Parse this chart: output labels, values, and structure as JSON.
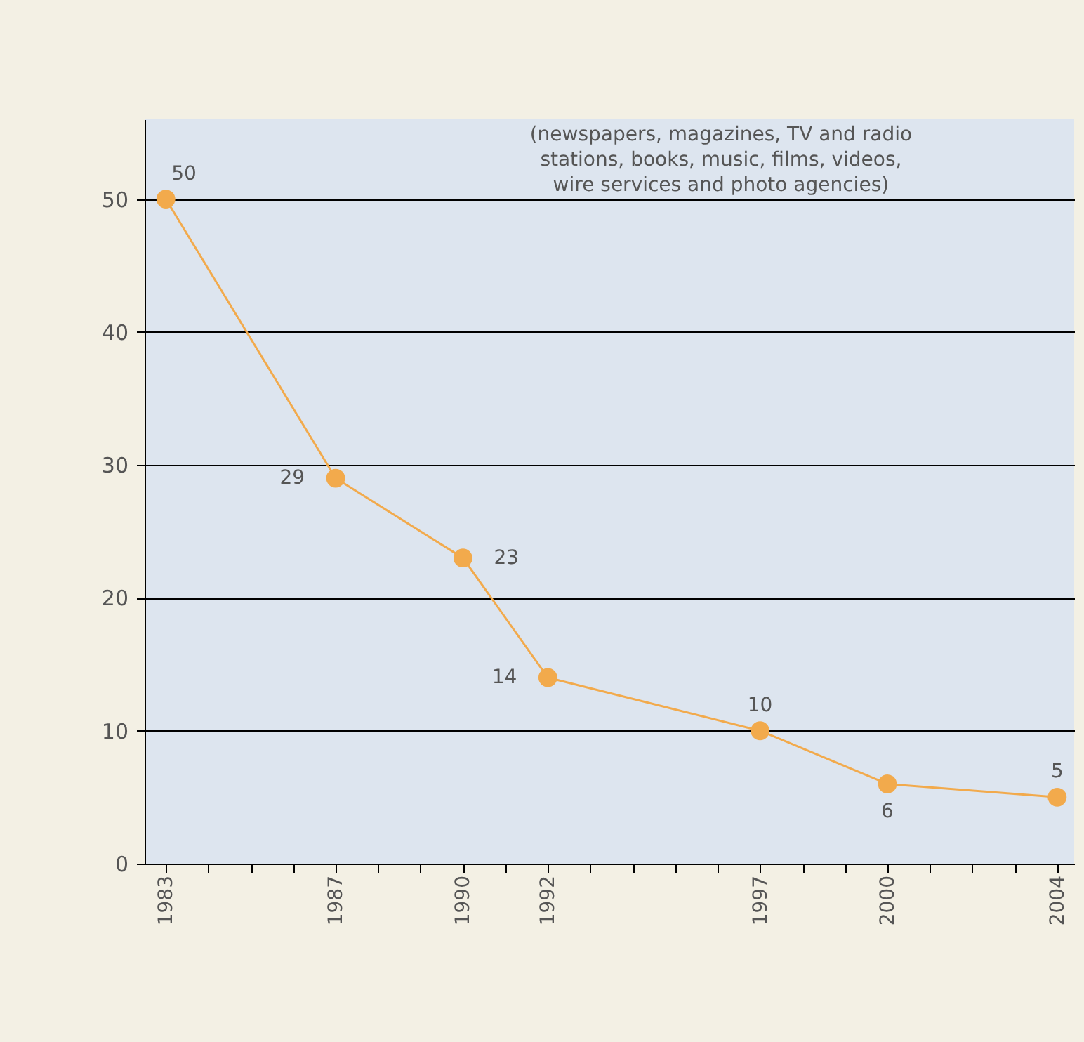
{
  "chart_data": {
    "type": "line",
    "x": [
      1983,
      1987,
      1990,
      1992,
      1997,
      2000,
      2004
    ],
    "series": [
      {
        "color": "#f2aa4c",
        "values": [
          50,
          29,
          23,
          14,
          10,
          6,
          5
        ]
      }
    ],
    "data_labels": true,
    "marker": "circle",
    "line_style": "solid",
    "grid": "y",
    "xlim": [
      1982.5,
      2004.4
    ],
    "xticks": [
      {
        "value": 1983,
        "label": "1983"
      },
      {
        "value": 1984,
        "label": null
      },
      {
        "value": 1985,
        "label": null
      },
      {
        "value": 1986,
        "label": null
      },
      {
        "value": 1987,
        "label": "1987"
      },
      {
        "value": 1988,
        "label": null
      },
      {
        "value": 1989,
        "label": null
      },
      {
        "value": 1990,
        "label": "1990"
      },
      {
        "value": 1991,
        "label": null
      },
      {
        "value": 1992,
        "label": "1992"
      },
      {
        "value": 1993,
        "label": null
      },
      {
        "value": 1994,
        "label": null
      },
      {
        "value": 1995,
        "label": null
      },
      {
        "value": 1996,
        "label": null
      },
      {
        "value": 1997,
        "label": "1997"
      },
      {
        "value": 1998,
        "label": null
      },
      {
        "value": 1999,
        "label": null
      },
      {
        "value": 2000,
        "label": "2000"
      },
      {
        "value": 2001,
        "label": null
      },
      {
        "value": 2002,
        "label": null
      },
      {
        "value": 2003,
        "label": null
      },
      {
        "value": 2004,
        "label": "2004"
      }
    ],
    "ylim": [
      0,
      56
    ],
    "yticks": [
      0,
      10,
      20,
      30,
      40,
      50
    ],
    "annotations": [
      "(newspapers, magazines, TV and radio\nstations, books, music, films, videos,\nwire services and photo agencies)"
    ]
  }
}
